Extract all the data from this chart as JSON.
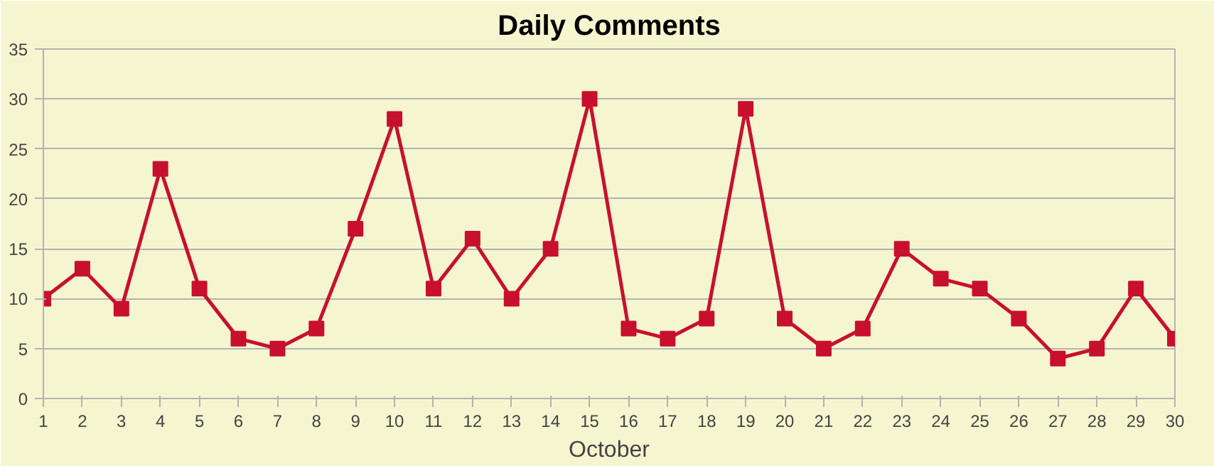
{
  "chart_data": {
    "type": "line",
    "title": "Daily Comments",
    "xlabel": "October",
    "x": [
      1,
      2,
      3,
      4,
      5,
      6,
      7,
      8,
      9,
      10,
      11,
      12,
      13,
      14,
      15,
      16,
      17,
      18,
      19,
      20,
      21,
      22,
      23,
      24,
      25,
      26,
      27,
      28,
      29,
      30
    ],
    "series": [
      {
        "color": "#c8102e",
        "values": [
          10,
          13,
          9,
          23,
          11,
          6,
          5,
          7,
          17,
          28,
          11,
          16,
          10,
          15,
          30,
          7,
          6,
          8,
          29,
          8,
          5,
          7,
          15,
          12,
          11,
          8,
          4,
          5,
          11,
          6
        ]
      }
    ],
    "xlim": [
      1,
      30
    ],
    "xticks": [
      1,
      2,
      3,
      4,
      5,
      6,
      7,
      8,
      9,
      10,
      11,
      12,
      13,
      14,
      15,
      16,
      17,
      18,
      19,
      20,
      21,
      22,
      23,
      24,
      25,
      26,
      27,
      28,
      29,
      30
    ],
    "ylim": [
      0,
      35
    ],
    "yticks": [
      0,
      5,
      10,
      15,
      20,
      25,
      30,
      35
    ],
    "grid": "y",
    "marker": "square",
    "line_style": "solid"
  }
}
